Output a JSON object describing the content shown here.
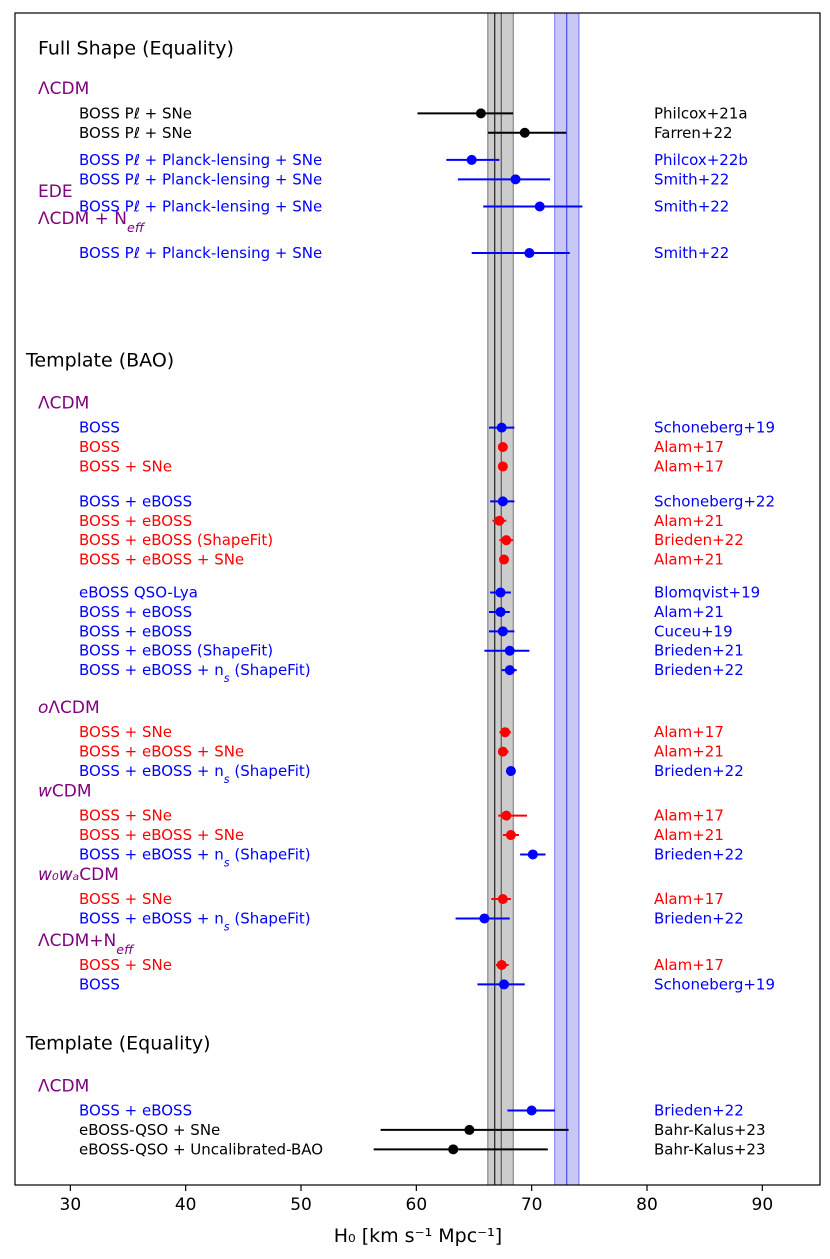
{
  "chart_data": {
    "type": "scatter",
    "subtype": "forest-plot",
    "xlabel": "H₀ [km s⁻¹ Mpc⁻¹]",
    "xlim": [
      25.2,
      95
    ],
    "xticks": [
      30,
      40,
      50,
      60,
      70,
      80,
      90
    ],
    "colors": {
      "black": "#000000",
      "blue": "#0000ff",
      "red": "#ff0000",
      "purple": "#800080"
    },
    "bands": [
      {
        "color": "#b0b0b0",
        "center": 67.36,
        "lo": 66.2,
        "hi": 68.4,
        "center2": 66.8
      },
      {
        "color": "#9a9af0",
        "center": 73.04,
        "lo": 72.0,
        "hi": 74.1
      }
    ],
    "sections": [
      {
        "text": "Full Shape (Equality)",
        "row": 1.0
      },
      {
        "text": "Template (BAO)",
        "row": 17.1
      },
      {
        "text": "Template (Equality)",
        "row": 52.3
      }
    ],
    "models": [
      {
        "text": "ΛCDM",
        "row": 3.1
      },
      {
        "text": "EDE",
        "row": 8.4
      },
      {
        "text": "ΛCDM + N_eff",
        "row": 9.8
      },
      {
        "text": "ΛCDM",
        "row": 19.3
      },
      {
        "text": "oΛCDM",
        "row": 35.0
      },
      {
        "text": "wCDM",
        "row": 39.3
      },
      {
        "text": "w₀wₐCDM",
        "row": 43.6
      },
      {
        "text": "ΛCDM+N_eff",
        "row": 47.0
      },
      {
        "text": "ΛCDM",
        "row": 54.5
      }
    ],
    "points": [
      {
        "label": "BOSS Pℓ + SNe",
        "ref": "Philcox+21a",
        "color": "black",
        "row": 4.4,
        "value": 65.6,
        "lo": 60.1,
        "hi": 68.4
      },
      {
        "label": "BOSS Pℓ + SNe",
        "ref": "Farren+22",
        "color": "black",
        "row": 5.4,
        "value": 69.4,
        "lo": 66.2,
        "hi": 73.0
      },
      {
        "label": "BOSS Pℓ + Planck-lensing + SNe",
        "ref": "Philcox+22b",
        "color": "blue",
        "row": 6.8,
        "value": 64.8,
        "lo": 62.6,
        "hi": 67.2
      },
      {
        "label": "BOSS Pℓ + Planck-lensing + SNe",
        "ref": "Smith+22",
        "color": "blue",
        "row": 7.8,
        "value": 68.6,
        "lo": 63.6,
        "hi": 71.6
      },
      {
        "label": "BOSS Pℓ + Planck-lensing + SNe",
        "ref": "Smith+22",
        "color": "blue",
        "row": 9.2,
        "value": 70.7,
        "lo": 65.8,
        "hi": 74.4
      },
      {
        "label": "BOSS Pℓ + Planck-lensing + SNe",
        "ref": "Smith+22",
        "color": "blue",
        "row": 11.6,
        "value": 69.8,
        "lo": 64.8,
        "hi": 73.3
      },
      {
        "label": "BOSS",
        "ref": "Schoneberg+19",
        "color": "blue",
        "row": 20.6,
        "value": 67.4,
        "lo": 66.3,
        "hi": 68.5
      },
      {
        "label": "BOSS",
        "ref": "Alam+17",
        "color": "red",
        "row": 21.6,
        "value": 67.5,
        "lo": 67.1,
        "hi": 67.9
      },
      {
        "label": "BOSS + SNe",
        "ref": "Alam+17",
        "color": "red",
        "row": 22.6,
        "value": 67.5,
        "lo": 67.2,
        "hi": 67.8
      },
      {
        "label": "BOSS + eBOSS",
        "ref": "Schoneberg+22",
        "color": "blue",
        "row": 24.4,
        "value": 67.5,
        "lo": 66.4,
        "hi": 68.5
      },
      {
        "label": "BOSS + eBOSS",
        "ref": "Alam+21",
        "color": "red",
        "row": 25.4,
        "value": 67.2,
        "lo": 66.6,
        "hi": 67.8
      },
      {
        "label": "BOSS + eBOSS (ShapeFit)",
        "ref": "Brieden+22",
        "color": "red",
        "row": 26.4,
        "value": 67.8,
        "lo": 67.2,
        "hi": 68.4
      },
      {
        "label": "BOSS + eBOSS + SNe",
        "ref": "Alam+21",
        "color": "red",
        "row": 27.4,
        "value": 67.6,
        "lo": 67.2,
        "hi": 68.0
      },
      {
        "label": "eBOSS QSO-Lya",
        "ref": "Blomqvist+19",
        "color": "blue",
        "row": 29.1,
        "value": 67.3,
        "lo": 66.4,
        "hi": 68.2
      },
      {
        "label": "BOSS + eBOSS",
        "ref": "Alam+21",
        "color": "blue",
        "row": 30.1,
        "value": 67.3,
        "lo": 66.3,
        "hi": 68.1
      },
      {
        "label": "BOSS + eBOSS",
        "ref": "Cuceu+19",
        "color": "blue",
        "row": 31.1,
        "value": 67.5,
        "lo": 66.3,
        "hi": 68.5
      },
      {
        "label": "BOSS + eBOSS (ShapeFit)",
        "ref": "Brieden+21",
        "color": "blue",
        "row": 32.1,
        "value": 68.1,
        "lo": 65.9,
        "hi": 69.8
      },
      {
        "label": "BOSS + eBOSS + n_s (ShapeFit)",
        "ref": "Brieden+22",
        "color": "blue",
        "row": 33.1,
        "value": 68.1,
        "lo": 67.4,
        "hi": 68.7
      },
      {
        "label": "BOSS + SNe",
        "ref": "Alam+17",
        "color": "red",
        "row": 36.3,
        "value": 67.7,
        "lo": 67.2,
        "hi": 68.2
      },
      {
        "label": "BOSS + eBOSS + SNe",
        "ref": "Alam+21",
        "color": "red",
        "row": 37.3,
        "value": 67.5,
        "lo": 67.1,
        "hi": 68.0
      },
      {
        "label": "BOSS + eBOSS + n_s (ShapeFit)",
        "ref": "Brieden+22",
        "color": "blue",
        "row": 38.3,
        "value": 68.2,
        "lo": 68.0,
        "hi": 68.4
      },
      {
        "label": "BOSS + SNe",
        "ref": "Alam+17",
        "color": "red",
        "row": 40.6,
        "value": 67.8,
        "lo": 67.1,
        "hi": 69.6
      },
      {
        "label": "BOSS + eBOSS + SNe",
        "ref": "Alam+21",
        "color": "red",
        "row": 41.6,
        "value": 68.2,
        "lo": 67.5,
        "hi": 68.9
      },
      {
        "label": "BOSS + eBOSS + n_s (ShapeFit)",
        "ref": "Brieden+22",
        "color": "blue",
        "row": 42.6,
        "value": 70.1,
        "lo": 69.0,
        "hi": 71.2
      },
      {
        "label": "BOSS + SNe",
        "ref": "Alam+17",
        "color": "red",
        "row": 44.9,
        "value": 67.5,
        "lo": 66.5,
        "hi": 68.2
      },
      {
        "label": "BOSS + eBOSS + n_s (ShapeFit)",
        "ref": "Brieden+22",
        "color": "blue",
        "row": 45.9,
        "value": 65.9,
        "lo": 63.4,
        "hi": 68.1
      },
      {
        "label": "BOSS + SNe",
        "ref": "Alam+17",
        "color": "red",
        "row": 48.3,
        "value": 67.4,
        "lo": 66.9,
        "hi": 68.0
      },
      {
        "label": "BOSS",
        "ref": "Schoneberg+19",
        "color": "blue",
        "row": 49.3,
        "value": 67.6,
        "lo": 65.3,
        "hi": 69.4
      },
      {
        "label": "BOSS + eBOSS",
        "ref": "Brieden+22",
        "color": "blue",
        "row": 55.8,
        "value": 70.0,
        "lo": 67.9,
        "hi": 72.0
      },
      {
        "label": "eBOSS-QSO + SNe",
        "ref": "Bahr-Kalus+23",
        "color": "black",
        "row": 56.8,
        "value": 64.6,
        "lo": 56.9,
        "hi": 73.2
      },
      {
        "label": "eBOSS-QSO + Uncalibrated-BAO",
        "ref": "Bahr-Kalus+23",
        "color": "black",
        "row": 57.8,
        "value": 63.2,
        "lo": 56.3,
        "hi": 71.4
      }
    ]
  }
}
